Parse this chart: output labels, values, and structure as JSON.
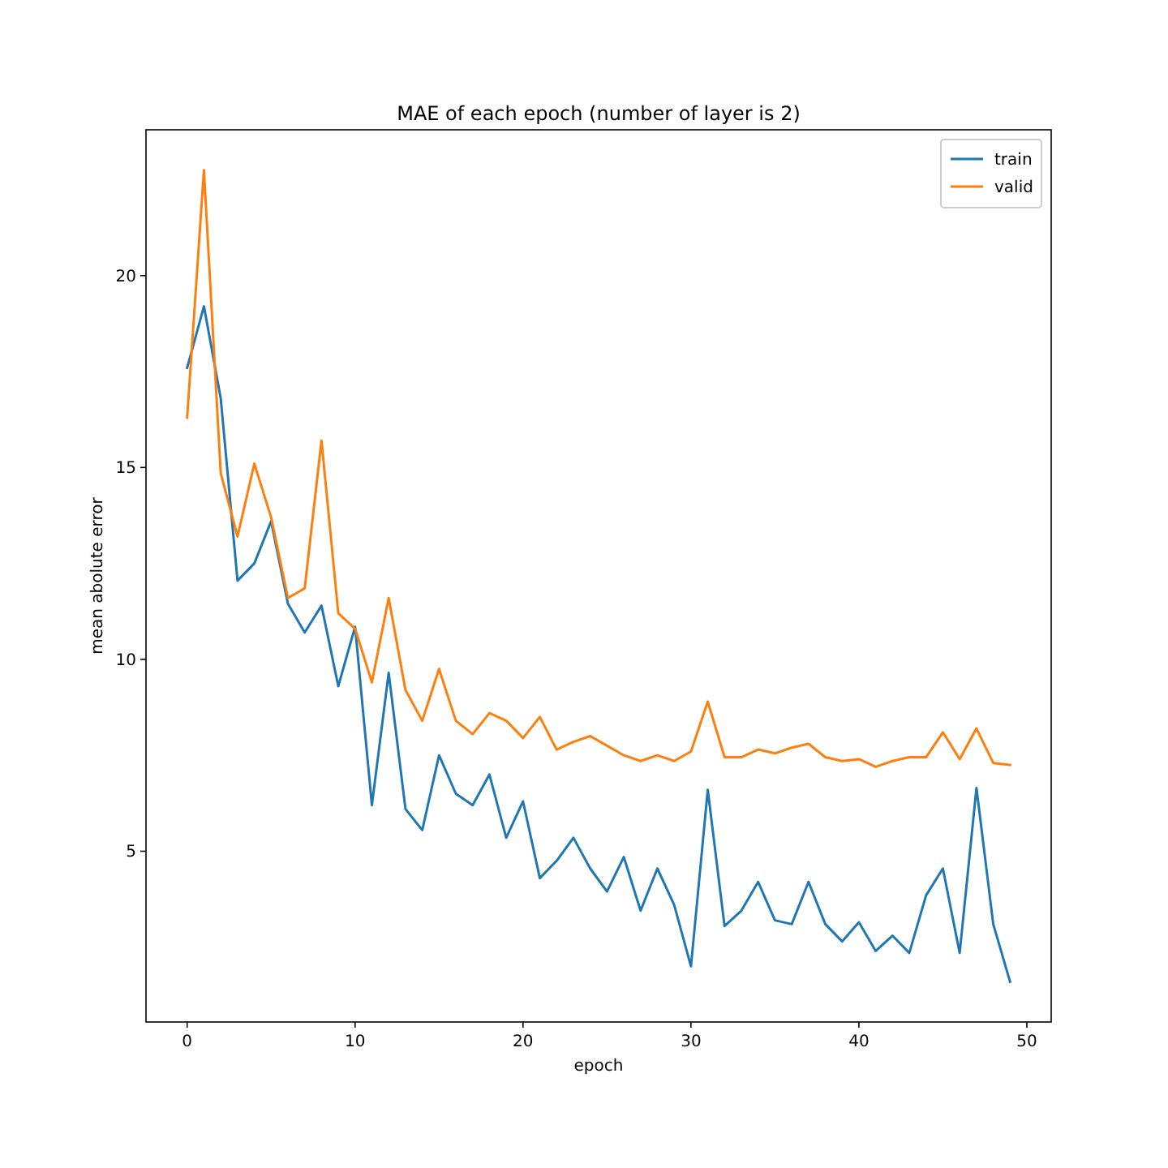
{
  "chart_data": {
    "type": "line",
    "title": "MAE of each epoch (number of layer is 2)",
    "xlabel": "epoch",
    "ylabel": "mean abolute error",
    "x": [
      0,
      1,
      2,
      3,
      4,
      5,
      6,
      7,
      8,
      9,
      10,
      11,
      12,
      13,
      14,
      15,
      16,
      17,
      18,
      19,
      20,
      21,
      22,
      23,
      24,
      25,
      26,
      27,
      28,
      29,
      30,
      31,
      32,
      33,
      34,
      35,
      36,
      37,
      38,
      39,
      40,
      41,
      42,
      43,
      44,
      45,
      46,
      47,
      48,
      49
    ],
    "series": [
      {
        "name": "train",
        "color": "#1f77b4",
        "values": [
          17.6,
          19.2,
          16.8,
          12.05,
          12.5,
          13.6,
          11.45,
          10.7,
          11.4,
          9.3,
          10.85,
          6.2,
          9.65,
          6.1,
          5.55,
          7.5,
          6.5,
          6.2,
          7.0,
          5.35,
          6.3,
          4.3,
          4.75,
          5.35,
          4.55,
          3.95,
          4.85,
          3.45,
          4.55,
          3.6,
          2.0,
          6.6,
          3.05,
          3.45,
          4.2,
          3.2,
          3.1,
          4.2,
          3.1,
          2.65,
          3.15,
          2.4,
          2.8,
          2.35,
          3.85,
          4.55,
          2.35,
          6.65,
          3.1,
          1.6
        ]
      },
      {
        "name": "valid",
        "color": "#ff7f0e",
        "values": [
          16.3,
          22.75,
          14.85,
          13.2,
          15.1,
          13.7,
          11.6,
          11.85,
          15.7,
          11.2,
          10.8,
          9.4,
          11.6,
          9.2,
          8.4,
          9.75,
          8.4,
          8.05,
          8.6,
          8.4,
          7.95,
          8.5,
          7.65,
          7.85,
          8.0,
          7.75,
          7.5,
          7.35,
          7.5,
          7.35,
          7.6,
          8.9,
          7.45,
          7.45,
          7.65,
          7.55,
          7.7,
          7.8,
          7.45,
          7.35,
          7.4,
          7.2,
          7.35,
          7.45,
          7.45,
          8.1,
          7.4,
          8.2,
          7.3,
          7.25
        ]
      }
    ],
    "xlim": [
      -2.45,
      51.45
    ],
    "ylim": [
      0.55,
      23.8
    ],
    "xticks": [
      0,
      10,
      20,
      30,
      40,
      50
    ],
    "yticks": [
      5,
      10,
      15,
      20
    ],
    "legend": "top right",
    "grid": false,
    "line_style": "solid",
    "marker": "none"
  }
}
